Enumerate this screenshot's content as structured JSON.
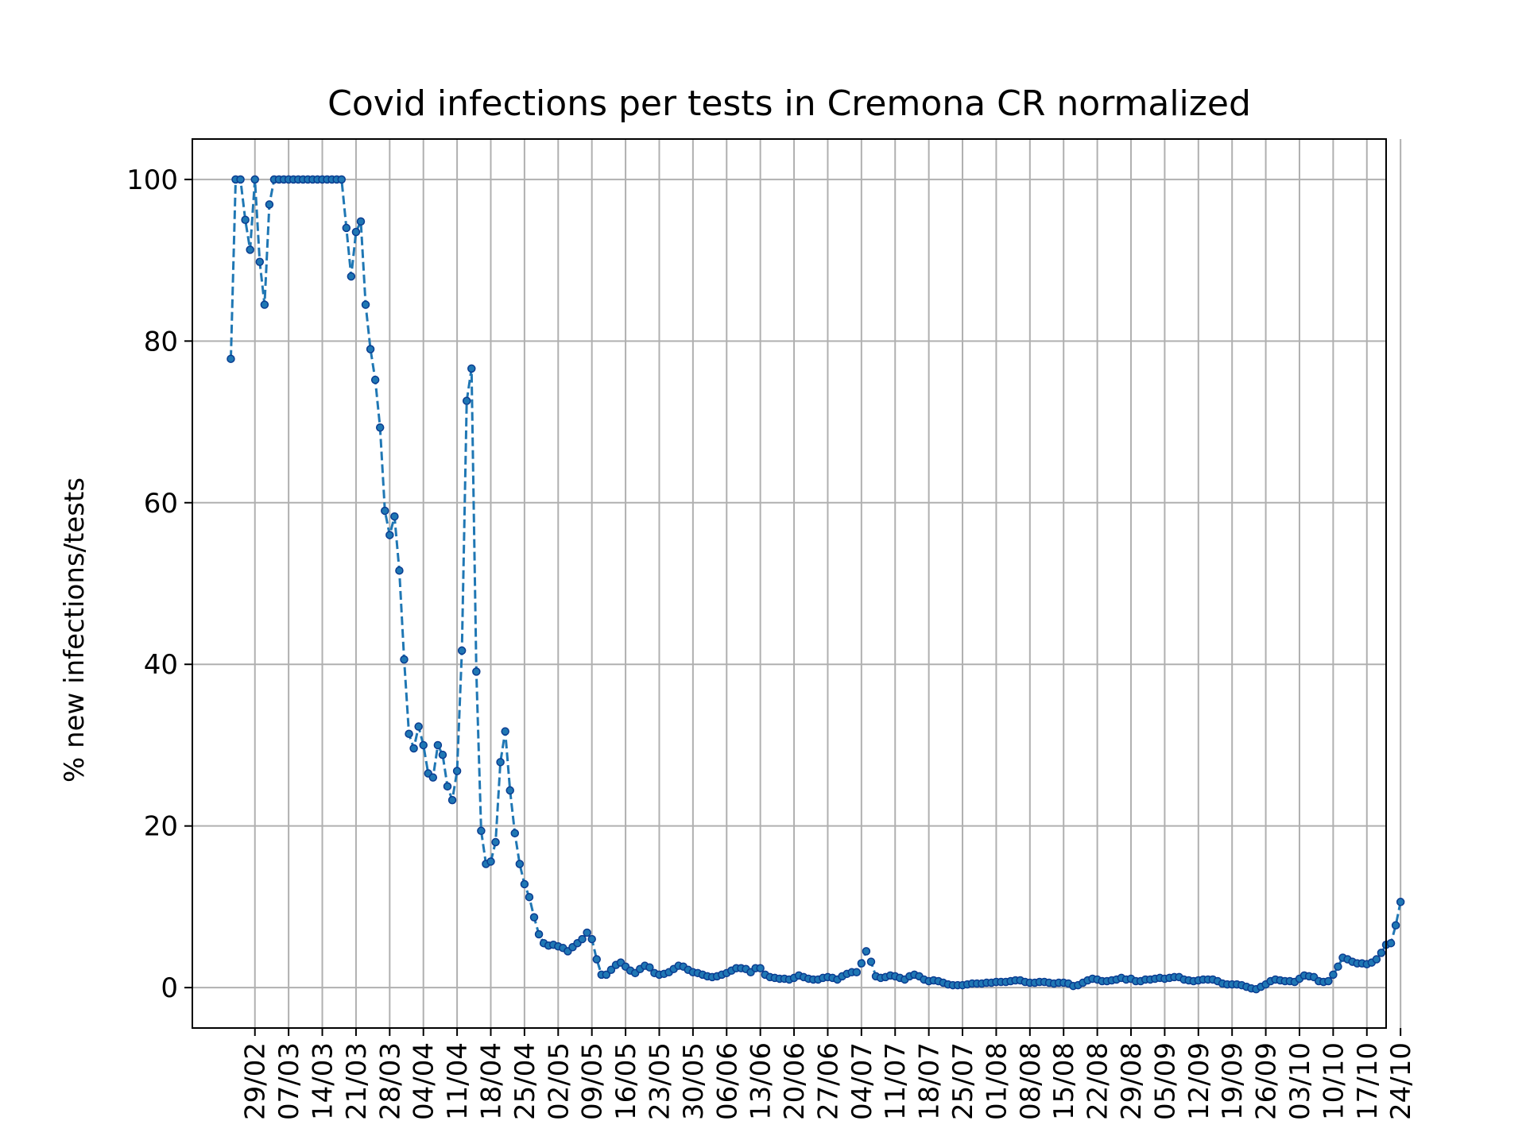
{
  "chart_data": {
    "type": "line",
    "title": "Covid infections per tests in Cremona CR normalized",
    "xlabel": "",
    "ylabel": "% new infections/tests",
    "ylim": [
      -5,
      105
    ],
    "yticks": [
      0,
      20,
      40,
      60,
      80,
      100
    ],
    "grid": true,
    "line_color": "#1f77b4",
    "marker_color": "#1f77b4",
    "line_style": "dashed",
    "x_axis_start": "2020-02-24",
    "xlim_days": [
      -8,
      240
    ],
    "xticks": [
      {
        "day": 5,
        "label": "29/02"
      },
      {
        "day": 12,
        "label": "07/03"
      },
      {
        "day": 19,
        "label": "14/03"
      },
      {
        "day": 26,
        "label": "21/03"
      },
      {
        "day": 33,
        "label": "28/03"
      },
      {
        "day": 40,
        "label": "04/04"
      },
      {
        "day": 47,
        "label": "11/04"
      },
      {
        "day": 54,
        "label": "18/04"
      },
      {
        "day": 61,
        "label": "25/04"
      },
      {
        "day": 68,
        "label": "02/05"
      },
      {
        "day": 75,
        "label": "09/05"
      },
      {
        "day": 82,
        "label": "16/05"
      },
      {
        "day": 89,
        "label": "23/05"
      },
      {
        "day": 96,
        "label": "30/05"
      },
      {
        "day": 103,
        "label": "06/06"
      },
      {
        "day": 110,
        "label": "13/06"
      },
      {
        "day": 117,
        "label": "20/06"
      },
      {
        "day": 124,
        "label": "27/06"
      },
      {
        "day": 131,
        "label": "04/07"
      },
      {
        "day": 138,
        "label": "11/07"
      },
      {
        "day": 145,
        "label": "18/07"
      },
      {
        "day": 152,
        "label": "25/07"
      },
      {
        "day": 159,
        "label": "01/08"
      },
      {
        "day": 166,
        "label": "08/08"
      },
      {
        "day": 173,
        "label": "15/08"
      },
      {
        "day": 180,
        "label": "22/08"
      },
      {
        "day": 187,
        "label": "29/08"
      },
      {
        "day": 194,
        "label": "05/09"
      },
      {
        "day": 201,
        "label": "12/09"
      },
      {
        "day": 208,
        "label": "19/09"
      },
      {
        "day": 215,
        "label": "26/09"
      },
      {
        "day": 222,
        "label": "03/10"
      },
      {
        "day": 229,
        "label": "10/10"
      },
      {
        "day": 236,
        "label": "17/10"
      },
      {
        "day": 243,
        "label": "24/10"
      }
    ],
    "series": [
      {
        "name": "",
        "values": [
          77.8,
          100,
          100,
          95,
          91.3,
          100,
          89.8,
          84.5,
          96.9,
          100,
          100,
          100,
          100,
          100,
          100,
          100,
          100,
          100,
          100,
          100,
          100,
          100,
          100,
          100,
          94,
          88,
          93.5,
          94.8,
          84.5,
          79,
          75.2,
          69.3,
          59,
          56,
          58.3,
          51.6,
          40.6,
          31.4,
          29.6,
          32.3,
          30,
          26.5,
          26,
          30,
          28.8,
          24.9,
          23.2,
          26.8,
          41.7,
          72.6,
          76.6,
          39.1,
          19.4,
          15.3,
          15.6,
          18,
          27.9,
          31.7,
          24.4,
          19.1,
          15.3,
          12.8,
          11.2,
          8.7,
          6.6,
          5.5,
          5.2,
          5.3,
          5.1,
          4.9,
          4.5,
          5,
          5.5,
          6,
          6.8,
          6,
          3.5,
          1.6,
          1.6,
          2.2,
          2.8,
          3.1,
          2.6,
          2.1,
          1.8,
          2.3,
          2.7,
          2.5,
          1.8,
          1.6,
          1.7,
          1.9,
          2.3,
          2.7,
          2.6,
          2.2,
          1.9,
          1.8,
          1.6,
          1.4,
          1.3,
          1.4,
          1.6,
          1.8,
          2.1,
          2.4,
          2.4,
          2.3,
          1.9,
          2.4,
          2.4,
          1.6,
          1.3,
          1.2,
          1.1,
          1.1,
          1,
          1.2,
          1.5,
          1.3,
          1.1,
          1,
          1,
          1.2,
          1.3,
          1.2,
          1,
          1.4,
          1.7,
          1.9,
          1.9,
          3,
          4.5,
          3.2,
          1.4,
          1.2,
          1.3,
          1.5,
          1.4,
          1.2,
          1,
          1.4,
          1.6,
          1.4,
          1,
          0.8,
          0.9,
          0.8,
          0.6,
          0.4,
          0.3,
          0.3,
          0.3,
          0.4,
          0.5,
          0.5,
          0.5,
          0.6,
          0.6,
          0.7,
          0.7,
          0.7,
          0.8,
          0.9,
          0.9,
          0.7,
          0.6,
          0.6,
          0.7,
          0.7,
          0.6,
          0.5,
          0.6,
          0.6,
          0.5,
          0.2,
          0.3,
          0.6,
          0.9,
          1.1,
          1,
          0.8,
          0.8,
          0.9,
          1,
          1.2,
          1,
          1.1,
          0.8,
          0.8,
          1,
          1,
          1.1,
          1.2,
          1.1,
          1.2,
          1.3,
          1.3,
          1,
          0.9,
          0.8,
          0.9,
          1,
          1,
          1,
          0.8,
          0.5,
          0.4,
          0.4,
          0.4,
          0.3,
          0.1,
          -0.1,
          -0.2,
          0.1,
          0.4,
          0.8,
          1,
          0.9,
          0.8,
          0.8,
          0.7,
          1.1,
          1.5,
          1.4,
          1.3,
          0.8,
          0.7,
          0.8,
          1.6,
          2.6,
          3.7,
          3.5,
          3.2,
          3,
          3,
          2.9,
          3.1,
          3.5,
          4.3,
          5.3,
          5.5,
          7.7,
          10.6
        ]
      }
    ]
  }
}
